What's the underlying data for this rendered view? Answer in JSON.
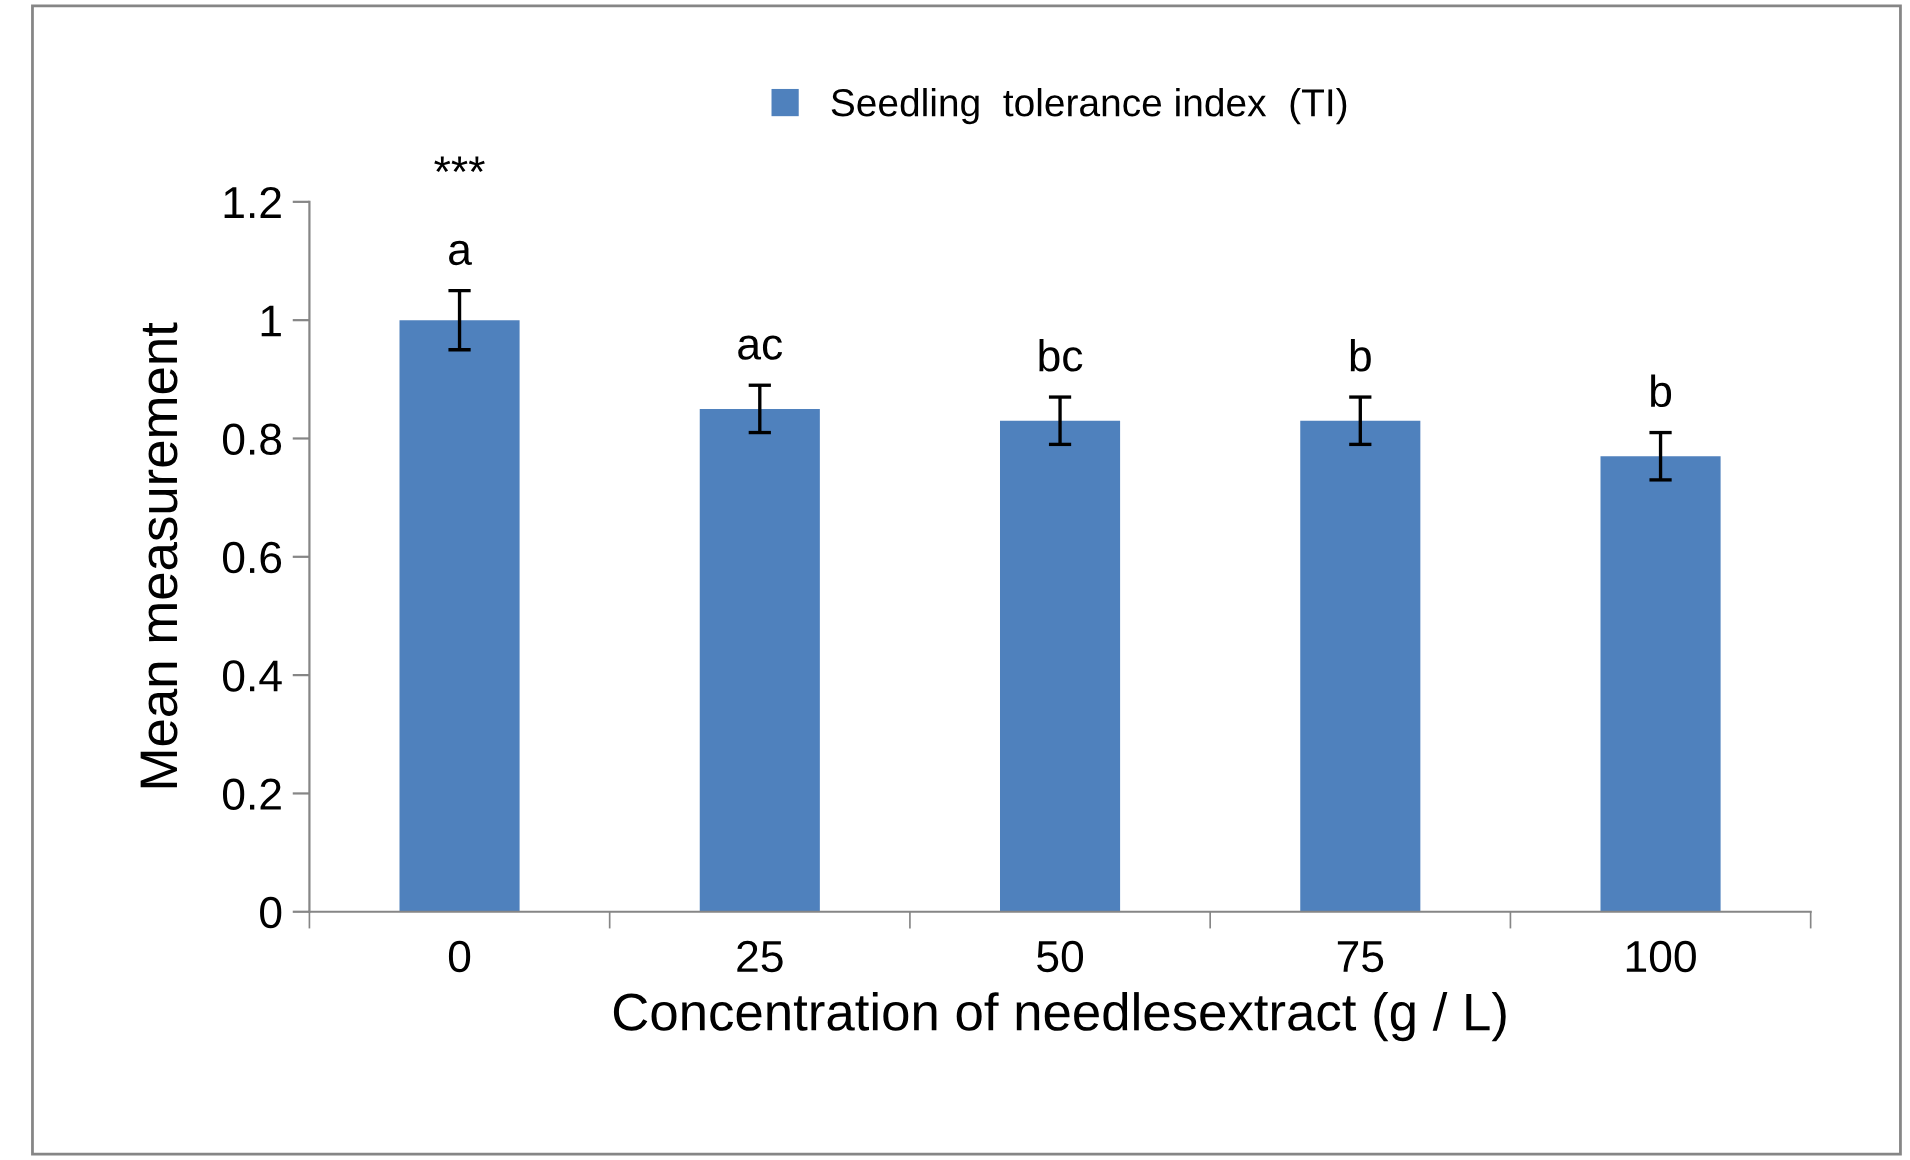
{
  "chart_data": {
    "type": "bar",
    "xlabel": "Concentration of needlesextract (g / L)",
    "ylabel": "Mean measurement",
    "categories": [
      "0",
      "25",
      "50",
      "75",
      "100"
    ],
    "series": [
      {
        "name": "Seedling  tolerance index  (TI)",
        "color": "#4f81bd",
        "values": [
          1.0,
          0.85,
          0.83,
          0.83,
          0.77
        ],
        "errors": [
          0.05,
          0.04,
          0.04,
          0.04,
          0.04
        ]
      }
    ],
    "ylim": [
      0,
      1.2
    ],
    "yticks": [
      0,
      {
        "value": 0.2,
        "label": "0.2"
      },
      {
        "value": 0.4,
        "label": "0.4"
      },
      {
        "value": 0.6,
        "label": "0.6"
      },
      {
        "value": 0.8,
        "label": "0.8"
      },
      1,
      {
        "value": 1.2,
        "label": "1.2"
      }
    ],
    "grid": false,
    "legend": "top",
    "annotations": [
      "***",
      {
        "text": "a",
        "x": "0",
        "y": 1.0
      },
      {
        "text": "ac",
        "x": "25",
        "y": 0.85
      },
      {
        "text": "bc",
        "x": "50",
        "y": 0.83
      },
      {
        "text": "b",
        "x": "75",
        "y": 0.83
      },
      {
        "text": "b",
        "x": "100",
        "y": 0.77
      }
    ]
  }
}
